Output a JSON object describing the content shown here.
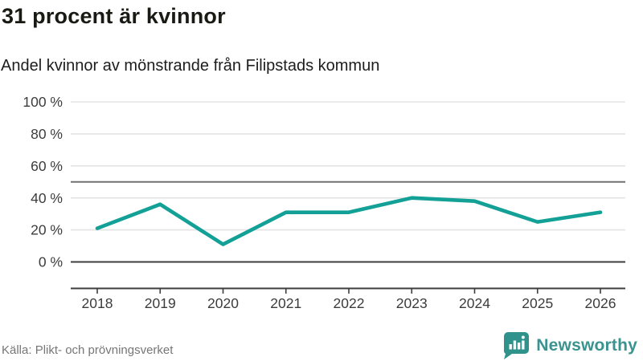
{
  "header": {
    "title": "31 procent är kvinnor",
    "subtitle": "Andel kvinnor av mönstrande från Filipstads kommun"
  },
  "footer": {
    "source": "Källa: Plikt- och prövningsverket",
    "brand_name": "Newsworthy",
    "brand_icon": "bar-chart-speech-bubble-icon"
  },
  "colors": {
    "line": "#13a096",
    "brand": "#3a938e",
    "brand_icon": "#2f938c",
    "grid": "#e3e3e3",
    "axis": "#3d3d3d",
    "reference": "#707070",
    "tick_text": "#3c3c3c"
  },
  "chart_data": {
    "type": "line",
    "title": "31 procent är kvinnor",
    "subtitle": "Andel kvinnor av mönstrande från Filipstads kommun",
    "categories": [
      "2018",
      "2019",
      "2020",
      "2021",
      "2022",
      "2023",
      "2024",
      "2025",
      "2026"
    ],
    "series": [
      {
        "name": "Andel kvinnor av mönstrande (%)",
        "values": [
          21,
          36,
          11,
          31,
          31,
          40,
          38,
          25,
          31
        ]
      }
    ],
    "xlabel": "",
    "ylabel": "",
    "ylim": [
      0,
      100
    ],
    "yticks": [
      0,
      20,
      40,
      60,
      80,
      100
    ],
    "ytick_format": "{v} %",
    "reference_line": 50,
    "grid": true,
    "legend_position": "none"
  }
}
